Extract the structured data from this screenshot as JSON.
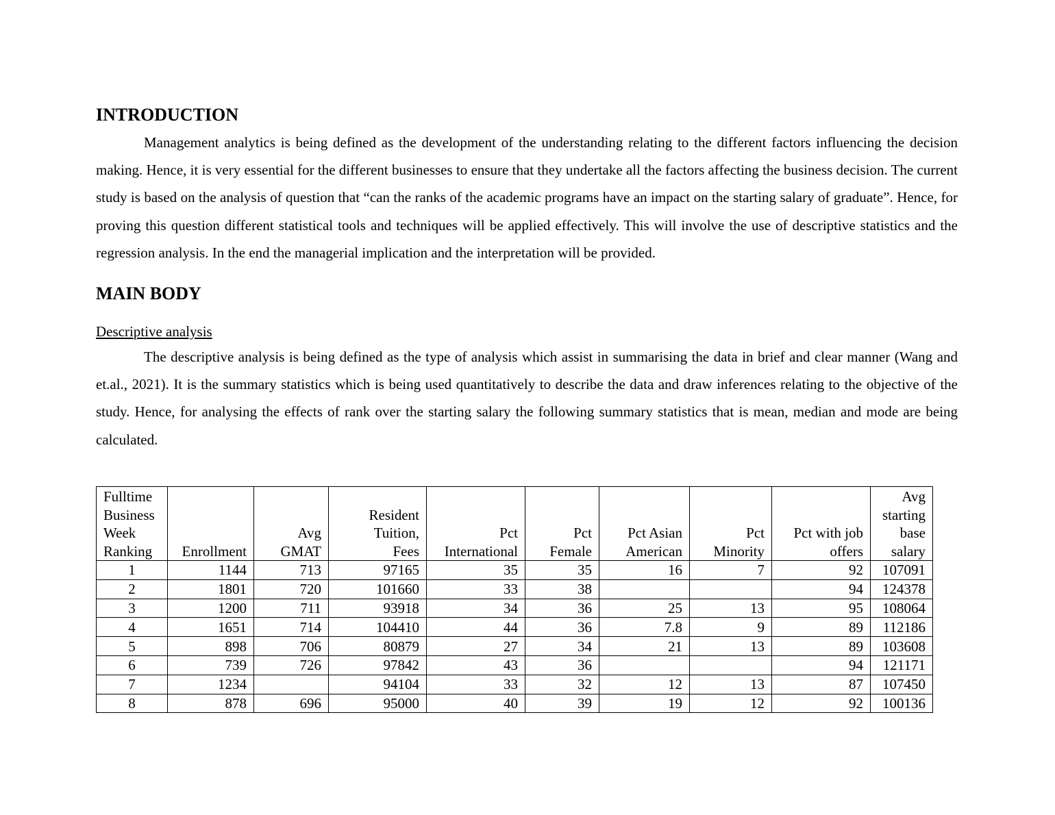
{
  "sections": {
    "intro_heading": "INTRODUCTION",
    "intro_paragraph": "Management analytics is being defined as the development of the understanding relating to the different factors influencing the decision making. Hence, it is very essential for the different businesses to ensure that they undertake all the factors affecting the business decision. The current study is based on the analysis of question that “can the ranks of the academic programs have an impact on the starting salary of graduate”. Hence, for proving this question different statistical tools and techniques will be applied effectively. This will involve the use of descriptive statistics and the regression analysis. In the end the managerial implication and the interpretation will be provided.",
    "main_heading": "MAIN BODY",
    "descriptive_subheading": "Descriptive analysis",
    "descriptive_paragraph": "The descriptive analysis is being defined as the type of analysis which assist in summarising the data in brief and clear manner (Wang and et.al., 2021). It is the summary statistics which is being used quantitatively to describe the data and draw inferences relating to the objective of the study. Hence, for analysing the effects of rank over the starting salary the following summary statistics that is mean, median and mode are being calculated."
  },
  "table": {
    "headers": [
      "Fulltime\nBusiness\nWeek\nRanking",
      "Enrollment",
      "Avg\nGMAT",
      "Resident\nTuition,\nFees",
      "Pct\nInternational",
      "Pct\nFemale",
      "Pct Asian\nAmerican",
      "Pct\nMinority",
      "Pct with job\noffers",
      "Avg\nstarting\nbase\nsalary"
    ],
    "rows": [
      [
        "1",
        "1144",
        "713",
        "97165",
        "35",
        "35",
        "16",
        "7",
        "92",
        "107091"
      ],
      [
        "2",
        "1801",
        "720",
        "101660",
        "33",
        "38",
        "",
        "",
        "94",
        "124378"
      ],
      [
        "3",
        "1200",
        "711",
        "93918",
        "34",
        "36",
        "25",
        "13",
        "95",
        "108064"
      ],
      [
        "4",
        "1651",
        "714",
        "104410",
        "44",
        "36",
        "7.8",
        "9",
        "89",
        "112186"
      ],
      [
        "5",
        "898",
        "706",
        "80879",
        "27",
        "34",
        "21",
        "13",
        "89",
        "103608"
      ],
      [
        "6",
        "739",
        "726",
        "97842",
        "43",
        "36",
        "",
        "",
        "94",
        "121171"
      ],
      [
        "7",
        "1234",
        "",
        "94104",
        "33",
        "32",
        "12",
        "13",
        "87",
        "107450"
      ],
      [
        "8",
        "878",
        "696",
        "95000",
        "40",
        "39",
        "19",
        "12",
        "92",
        "100136"
      ]
    ]
  }
}
